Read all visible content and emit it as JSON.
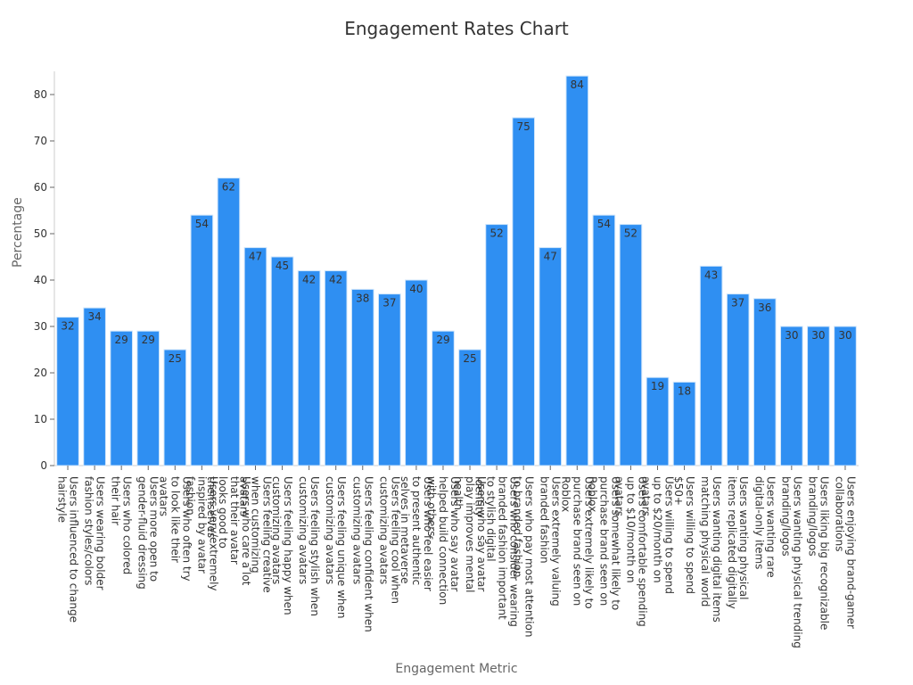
{
  "chart_data": {
    "type": "bar",
    "title": "Engagement Rates Chart",
    "xlabel": "Engagement Metric",
    "ylabel": "Percentage",
    "ylim": [
      0,
      85
    ],
    "yticks": [
      0,
      10,
      20,
      30,
      40,
      50,
      60,
      70,
      80
    ],
    "grid": false,
    "bar_color": "#2f8ff2",
    "bar_edge_color": "#cfe5fb",
    "label_color": "#333333",
    "categories": [
      "Users influenced to change hairstyle",
      "Users wearing bolder fashion styles/colors",
      "Users who colored their hair",
      "Users more open to gender-fluid dressing",
      "Users who often try to look like their avatars",
      "Users very/extremely inspired by avatar fashion",
      "Users who care a lot that their avatar looks good to themselves",
      "Users feeling creative when customizing avatars",
      "Users feeling happy when customizing avatars",
      "Users feeling stylish when customizing avatars",
      "Users feeling unique when customizing avatars",
      "Users feeling confident when customizing avatars",
      "Users feeling cool when customizing avatars",
      "Users who feel easier to present authentic selves in metaverse",
      "Users who say avatar helped build connection with others",
      "Users who say avatar play improves mental health",
      "Users who consider wearing branded fashion important to stylish digital identity",
      "Users who pay most attention to branded fashion",
      "Users extremely valuing branded fashion",
      "Users extremely likely to purchase brand seen on Roblox",
      "Users somewhat likely to purchase brand seen on Roblox",
      "Users comfortable spending up to $10/month on avatars",
      "Users willing to spend up to $20/month on avatars",
      "Users willing to spend $50+",
      "Users wanting digital items matching physical world",
      "Users wanting physical items replicated digitally",
      "Users wanting rare digital-only items",
      "Users wanting physical trending branding/logos",
      "Users liking big recognizable branding/logos",
      "Users enjoying brand-gamer collaborations"
    ],
    "tick_labels": [
      [
        "Users influenced to change",
        "hairstyle"
      ],
      [
        "Users wearing bolder",
        "fashion styles/colors"
      ],
      [
        "Users who colored",
        "their hair"
      ],
      [
        "Users more open to",
        "gender-fluid dressing"
      ],
      [
        "Users who often try",
        "to look like their",
        "avatars"
      ],
      [
        "Users very/extremely",
        "inspired by avatar",
        "fashion"
      ],
      [
        "Users who care a lot",
        "that their avatar",
        "looks good to",
        "themselves"
      ],
      [
        "Users feeling creative",
        "when customizing",
        "avatars"
      ],
      [
        "Users feeling happy when",
        "customizing avatars"
      ],
      [
        "Users feeling stylish when",
        "customizing avatars"
      ],
      [
        "Users feeling unique when",
        "customizing avatars"
      ],
      [
        "Users feeling confident when",
        "customizing avatars"
      ],
      [
        "Users feeling cool when",
        "customizing avatars"
      ],
      [
        "Users who feel easier",
        "to present authentic",
        "selves in metaverse"
      ],
      [
        "Users who say avatar",
        "helped build connection",
        "with others"
      ],
      [
        "Users who say avatar",
        "play improves mental",
        "health"
      ],
      [
        "Users who consider wearing",
        "branded fashion important",
        "to stylish digital",
        "identity"
      ],
      [
        "Users who pay most attention",
        "to branded fashion"
      ],
      [
        "Users extremely valuing",
        "branded fashion"
      ],
      [
        "Users extremely likely to",
        "purchase brand seen on",
        "Roblox"
      ],
      [
        "Users somewhat likely to",
        "purchase brand seen on",
        "Roblox"
      ],
      [
        "Users comfortable spending",
        "up to $10/month on",
        "avatars"
      ],
      [
        "Users willing to spend",
        "up to $20/month on",
        "avatars"
      ],
      [
        "Users willing to spend",
        "$50+"
      ],
      [
        "Users wanting digital items",
        "matching physical world"
      ],
      [
        "Users wanting physical",
        "items replicated digitally"
      ],
      [
        "Users wanting rare",
        "digital-only items"
      ],
      [
        "Users wanting physical trending",
        "branding/logos"
      ],
      [
        "Users liking big recognizable",
        "branding/logos"
      ],
      [
        "Users enjoying brand-gamer",
        "collaborations"
      ]
    ],
    "values": [
      32,
      34,
      29,
      29,
      25,
      54,
      62,
      47,
      45,
      42,
      42,
      38,
      37,
      40,
      29,
      25,
      52,
      75,
      47,
      84,
      54,
      52,
      19,
      18,
      43,
      37,
      36,
      30,
      30,
      30
    ]
  }
}
